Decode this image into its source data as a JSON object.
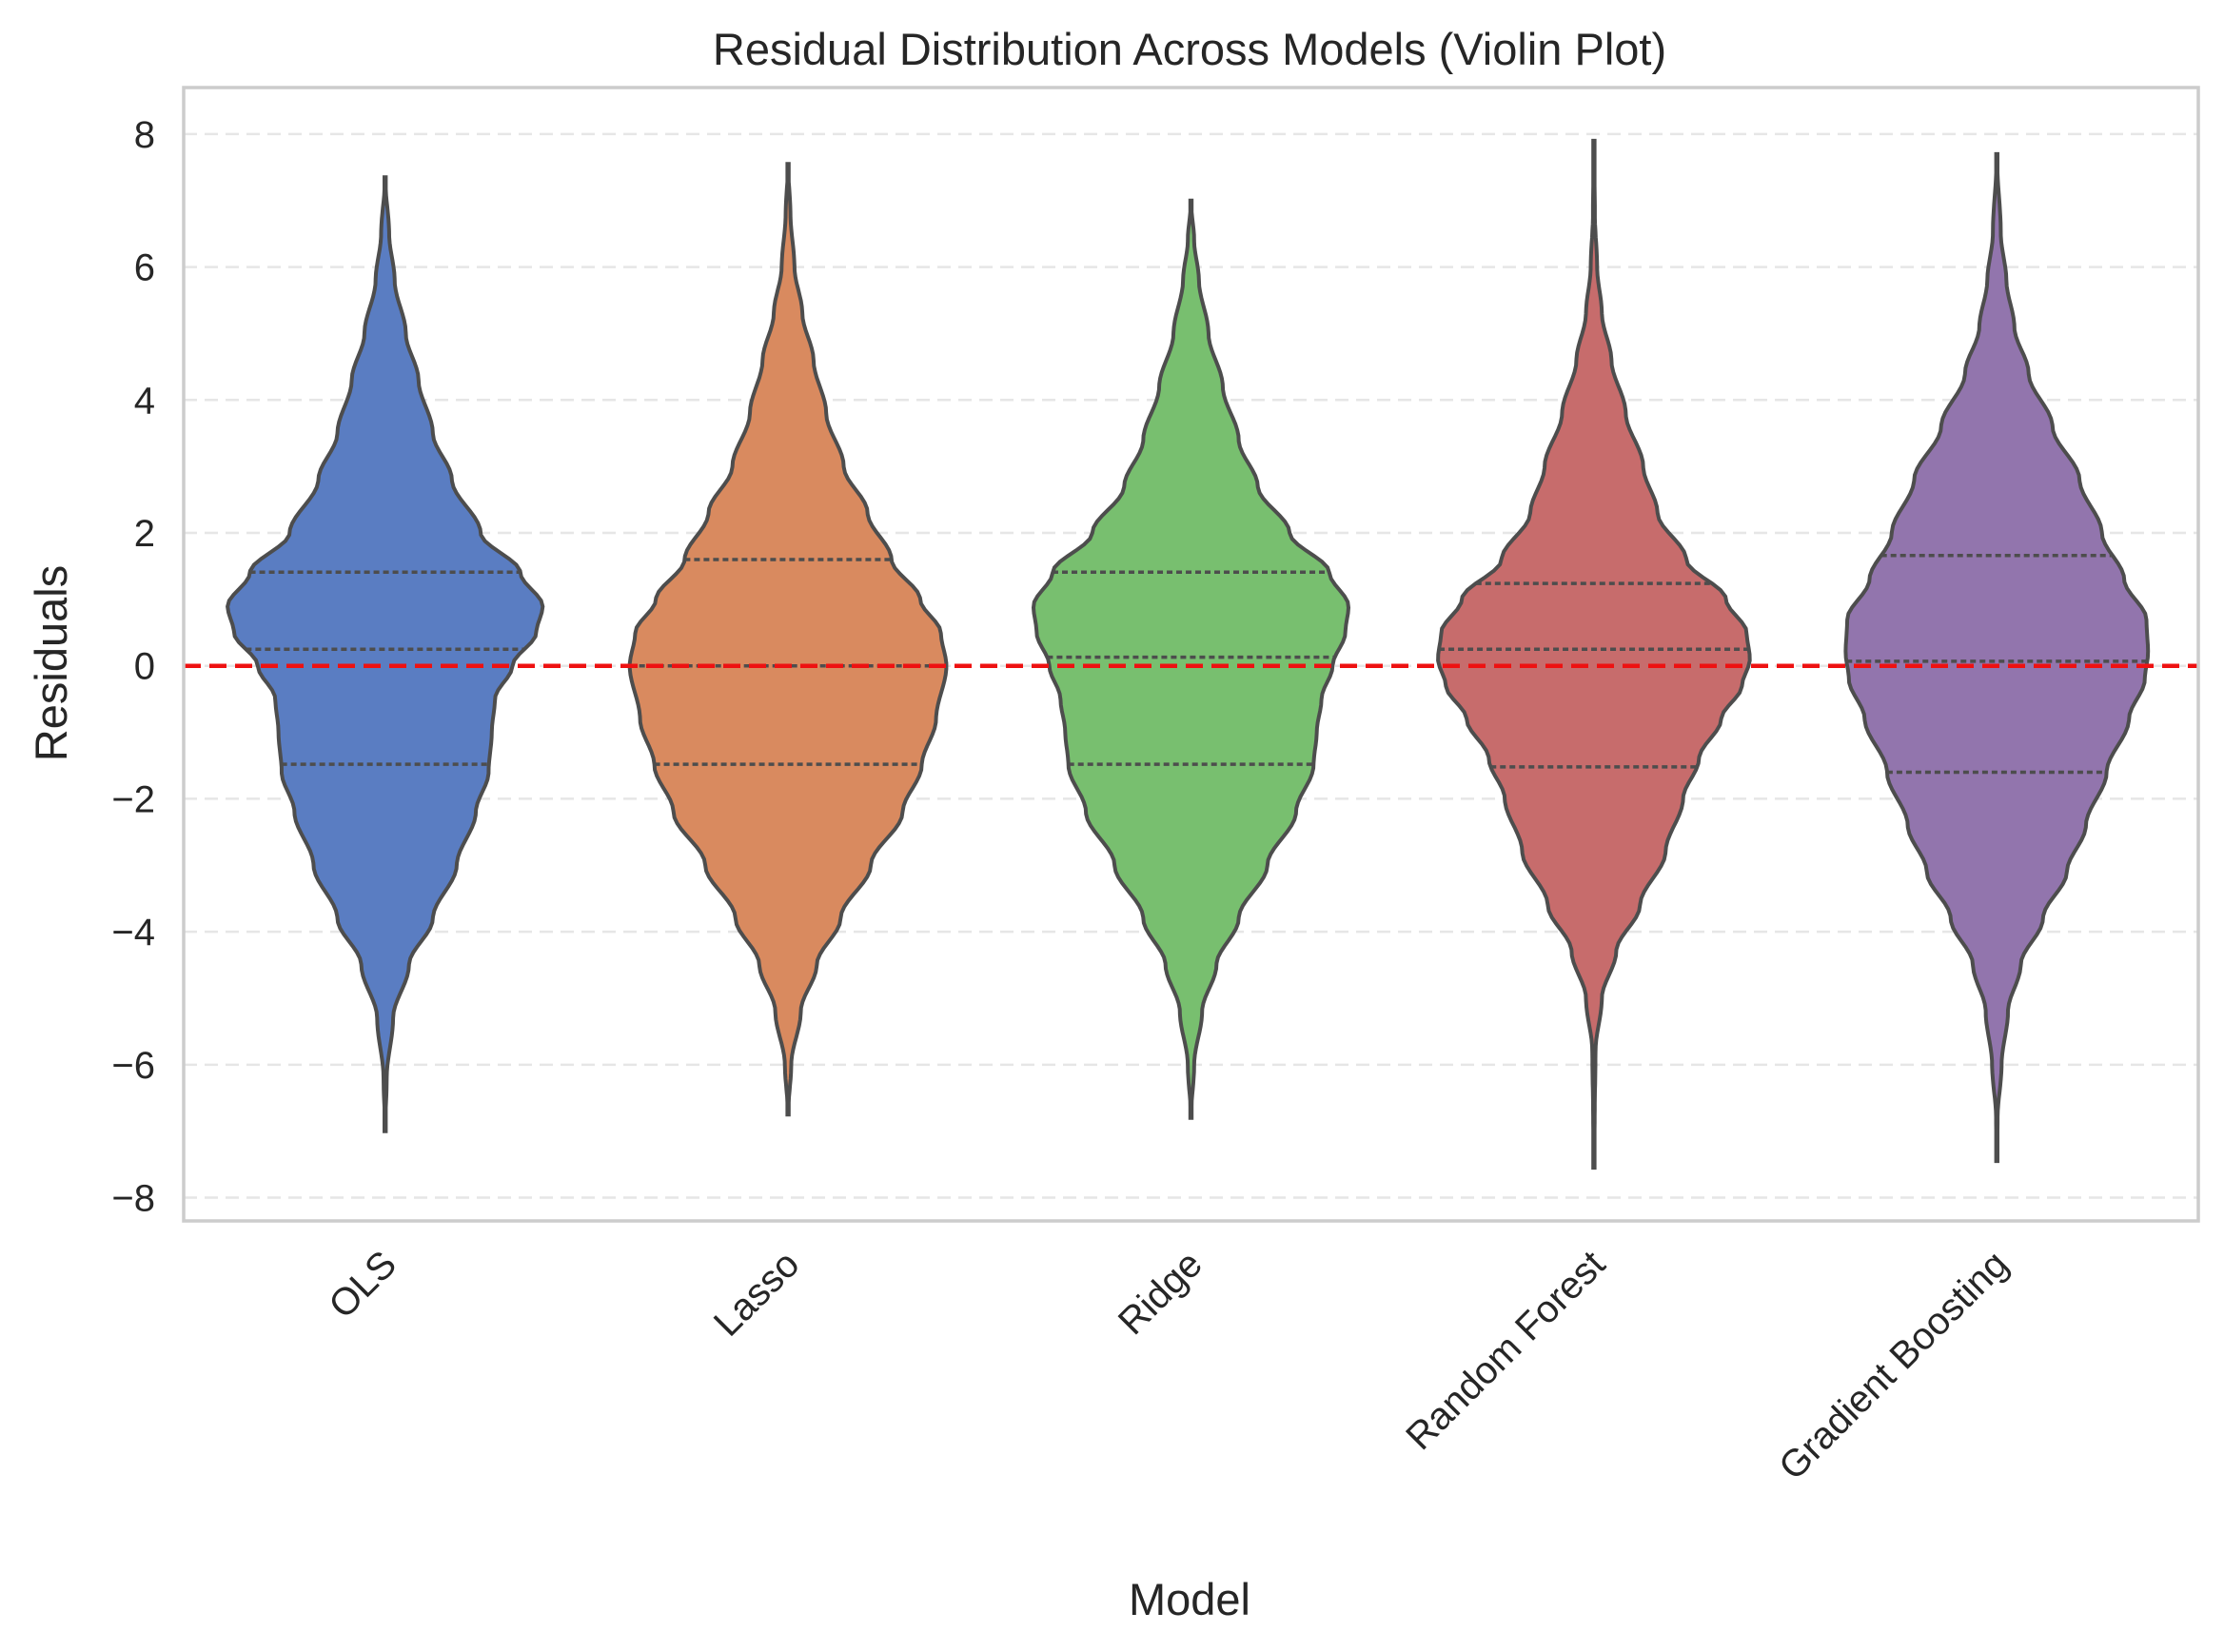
{
  "chart_data": {
    "type": "violin",
    "title": "Residual Distribution Across Models (Violin Plot)",
    "xlabel": "Model",
    "ylabel": "Residuals",
    "ylim": [
      -8.35,
      8.7
    ],
    "yticks": [
      -8,
      -6,
      -4,
      -2,
      0,
      2,
      4,
      6,
      8
    ],
    "ytick_labels": [
      "−8",
      "−6",
      "−4",
      "−2",
      "0",
      "2",
      "4",
      "6",
      "8"
    ],
    "grid": "y-dashed",
    "reference_line": {
      "y": 0,
      "color": "#ee1111",
      "style": "dashed"
    },
    "categories": [
      "OLS",
      "Lasso",
      "Ridge",
      "Random Forest",
      "Gradient Boosting"
    ],
    "series": [
      {
        "category": "OLS",
        "color": "#5a7dc2",
        "min": -7.0,
        "max": 7.35,
        "q1": -1.48,
        "median": 0.25,
        "q3": 1.41,
        "max_halfwidth": 0.79,
        "density_profile": [
          [
            -7.0,
            0
          ],
          [
            -6.2,
            0.01
          ],
          [
            -5.3,
            0.05
          ],
          [
            -4.5,
            0.15
          ],
          [
            -3.8,
            0.3
          ],
          [
            -3.0,
            0.45
          ],
          [
            -2.2,
            0.57
          ],
          [
            -1.6,
            0.65
          ],
          [
            -1.0,
            0.67
          ],
          [
            -0.5,
            0.69
          ],
          [
            0,
            0.8
          ],
          [
            0.5,
            0.95
          ],
          [
            0.9,
            0.99
          ],
          [
            1.4,
            0.85
          ],
          [
            2.0,
            0.6
          ],
          [
            2.8,
            0.42
          ],
          [
            3.5,
            0.3
          ],
          [
            4.3,
            0.21
          ],
          [
            5.0,
            0.13
          ],
          [
            5.8,
            0.06
          ],
          [
            6.5,
            0.025
          ],
          [
            7.35,
            0
          ]
        ]
      },
      {
        "category": "Lasso",
        "color": "#d98a5f",
        "min": -6.75,
        "max": 7.55,
        "q1": -1.48,
        "median": 0.0,
        "q3": 1.6,
        "max_halfwidth": 0.79,
        "density_profile": [
          [
            -6.75,
            0
          ],
          [
            -6.0,
            0.02
          ],
          [
            -5.2,
            0.08
          ],
          [
            -4.5,
            0.18
          ],
          [
            -3.8,
            0.33
          ],
          [
            -3.0,
            0.52
          ],
          [
            -2.2,
            0.72
          ],
          [
            -1.5,
            0.84
          ],
          [
            -0.8,
            0.93
          ],
          [
            0,
            0.995
          ],
          [
            0.5,
            0.96
          ],
          [
            1.0,
            0.83
          ],
          [
            1.6,
            0.65
          ],
          [
            2.3,
            0.5
          ],
          [
            3.0,
            0.35
          ],
          [
            3.8,
            0.24
          ],
          [
            4.6,
            0.16
          ],
          [
            5.3,
            0.09
          ],
          [
            6.0,
            0.04
          ],
          [
            6.8,
            0.015
          ],
          [
            7.55,
            0
          ]
        ]
      },
      {
        "category": "Ridge",
        "color": "#78bf6f",
        "min": -6.8,
        "max": 7.0,
        "q1": -1.48,
        "median": 0.13,
        "q3": 1.41,
        "max_halfwidth": 0.79,
        "density_profile": [
          [
            -6.8,
            0
          ],
          [
            -6.0,
            0.02
          ],
          [
            -5.2,
            0.07
          ],
          [
            -4.5,
            0.16
          ],
          [
            -3.8,
            0.3
          ],
          [
            -3.0,
            0.48
          ],
          [
            -2.2,
            0.66
          ],
          [
            -1.5,
            0.77
          ],
          [
            -1.0,
            0.79
          ],
          [
            -0.5,
            0.82
          ],
          [
            0,
            0.89
          ],
          [
            0.5,
            0.97
          ],
          [
            0.9,
            0.99
          ],
          [
            1.4,
            0.87
          ],
          [
            2.0,
            0.62
          ],
          [
            2.7,
            0.42
          ],
          [
            3.4,
            0.3
          ],
          [
            4.2,
            0.2
          ],
          [
            5.0,
            0.11
          ],
          [
            5.8,
            0.05
          ],
          [
            6.4,
            0.02
          ],
          [
            7.0,
            0
          ]
        ]
      },
      {
        "category": "Random Forest",
        "color": "#c76c6c",
        "min": -7.55,
        "max": 7.9,
        "q1": -1.52,
        "median": 0.25,
        "q3": 1.24,
        "max_halfwidth": 0.79,
        "density_profile": [
          [
            -7.55,
            0
          ],
          [
            -6.8,
            0.005
          ],
          [
            -5.8,
            0.01
          ],
          [
            -5.0,
            0.05
          ],
          [
            -4.3,
            0.14
          ],
          [
            -3.6,
            0.29
          ],
          [
            -2.8,
            0.45
          ],
          [
            -2.0,
            0.56
          ],
          [
            -1.4,
            0.66
          ],
          [
            -0.8,
            0.8
          ],
          [
            -0.3,
            0.93
          ],
          [
            0.1,
            0.98
          ],
          [
            0.5,
            0.96
          ],
          [
            1.0,
            0.83
          ],
          [
            1.6,
            0.58
          ],
          [
            2.3,
            0.4
          ],
          [
            3.0,
            0.31
          ],
          [
            3.8,
            0.2
          ],
          [
            4.6,
            0.11
          ],
          [
            5.3,
            0.05
          ],
          [
            6.0,
            0.02
          ],
          [
            6.8,
            0.006
          ],
          [
            7.9,
            0
          ]
        ]
      },
      {
        "category": "Gradient Boosting",
        "color": "#9275ad",
        "min": -7.45,
        "max": 7.7,
        "q1": -1.6,
        "median": 0.07,
        "q3": 1.66,
        "max_halfwidth": 0.79,
        "density_profile": [
          [
            -7.45,
            0
          ],
          [
            -6.8,
            0.005
          ],
          [
            -6.0,
            0.03
          ],
          [
            -5.2,
            0.07
          ],
          [
            -4.5,
            0.15
          ],
          [
            -3.8,
            0.29
          ],
          [
            -3.1,
            0.44
          ],
          [
            -2.4,
            0.56
          ],
          [
            -1.6,
            0.69
          ],
          [
            -0.8,
            0.83
          ],
          [
            -0.2,
            0.93
          ],
          [
            0.2,
            0.95
          ],
          [
            0.7,
            0.94
          ],
          [
            1.3,
            0.8
          ],
          [
            2.0,
            0.66
          ],
          [
            2.8,
            0.52
          ],
          [
            3.6,
            0.35
          ],
          [
            4.4,
            0.2
          ],
          [
            5.1,
            0.11
          ],
          [
            5.8,
            0.06
          ],
          [
            6.5,
            0.025
          ],
          [
            7.7,
            0
          ]
        ]
      }
    ]
  }
}
